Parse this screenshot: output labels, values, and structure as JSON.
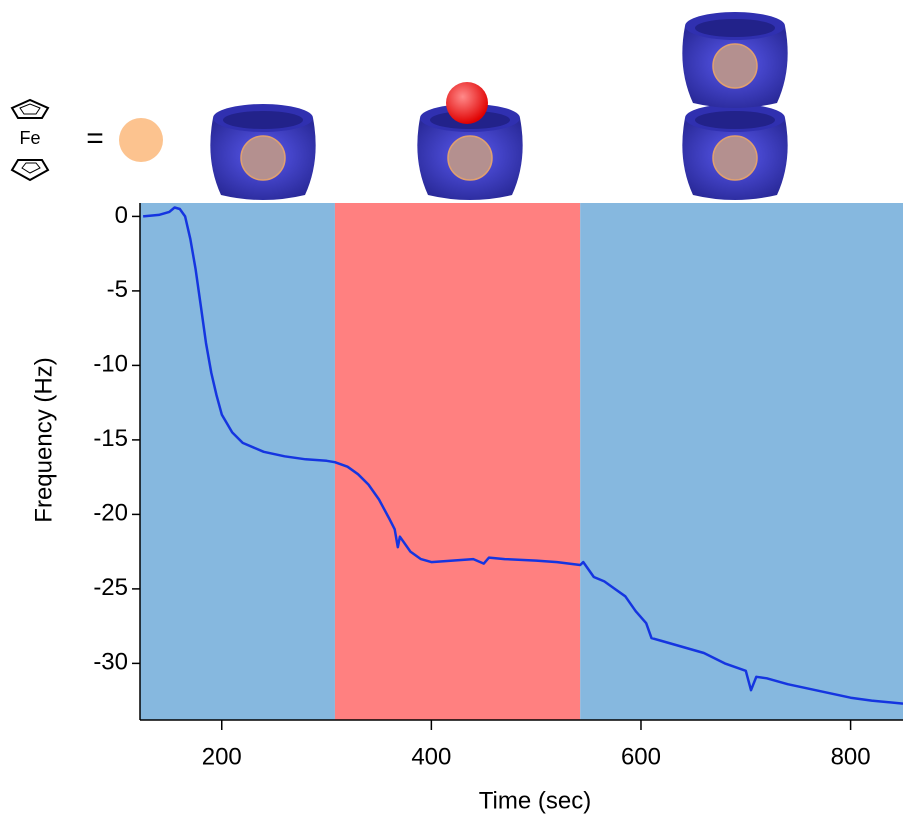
{
  "chart_data": {
    "type": "line",
    "x_label": "Time (sec)",
    "y_label": "Frequency (Hz)",
    "formula_label": "Fe",
    "equals_sign": "=",
    "xlim": [
      122,
      850
    ],
    "ylim": [
      -33.8,
      0.9
    ],
    "xticks": [
      200,
      400,
      600,
      800
    ],
    "yticks": [
      0,
      -5,
      -10,
      -15,
      -20,
      -25,
      -30
    ],
    "regions": [
      {
        "start": 122,
        "end": 308,
        "color": "#86b8df"
      },
      {
        "start": 308,
        "end": 542,
        "color": "#ff8080"
      },
      {
        "start": 542,
        "end": 850,
        "color": "#86b8df"
      }
    ],
    "series": [
      {
        "color": "#1535e0",
        "x": [
          125,
          140,
          150,
          155,
          160,
          165,
          170,
          175,
          180,
          185,
          190,
          195,
          200,
          210,
          220,
          240,
          260,
          280,
          300,
          308,
          320,
          330,
          340,
          350,
          360,
          365,
          368,
          370,
          380,
          390,
          400,
          420,
          440,
          450,
          455,
          470,
          500,
          520,
          542,
          545,
          555,
          565,
          575,
          585,
          595,
          605,
          610,
          620,
          640,
          660,
          680,
          700,
          705,
          710,
          720,
          740,
          760,
          780,
          800,
          820,
          850
        ],
        "values": [
          0,
          0.1,
          0.3,
          0.6,
          0.5,
          0,
          -1.5,
          -3.5,
          -6,
          -8.5,
          -10.5,
          -12,
          -13.3,
          -14.5,
          -15.2,
          -15.8,
          -16.1,
          -16.3,
          -16.4,
          -16.5,
          -16.8,
          -17.3,
          -18,
          -19,
          -20.3,
          -21,
          -22.2,
          -21.5,
          -22.5,
          -23,
          -23.2,
          -23.1,
          -23,
          -23.3,
          -22.9,
          -23,
          -23.1,
          -23.2,
          -23.4,
          -23.2,
          -24.2,
          -24.5,
          -25,
          -25.5,
          -26.5,
          -27.3,
          -28.3,
          -28.5,
          -28.9,
          -29.3,
          -30,
          -30.5,
          -31.8,
          -30.9,
          -31,
          -31.4,
          -31.7,
          -32,
          -32.3,
          -32.5,
          -32.7
        ]
      }
    ]
  }
}
